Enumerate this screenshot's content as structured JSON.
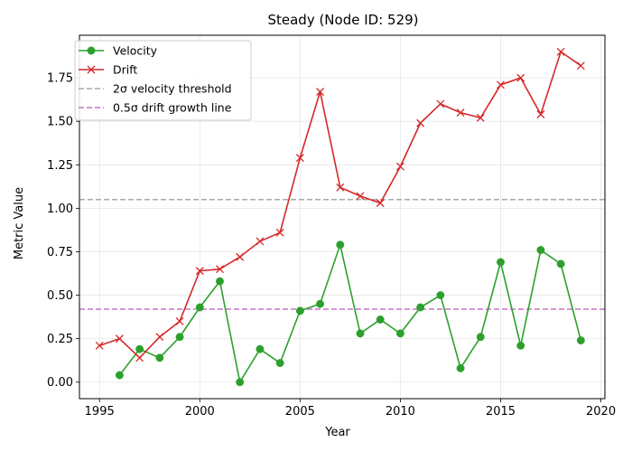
{
  "chart_data": {
    "type": "line",
    "title": "Steady (Node ID: 529)",
    "xlabel": "Year",
    "ylabel": "Metric Value",
    "xlim": [
      1994,
      2020.2
    ],
    "ylim": [
      -0.095,
      1.995
    ],
    "x_ticks": [
      1995,
      2000,
      2005,
      2010,
      2015,
      2020
    ],
    "y_ticks": [
      0.0,
      0.25,
      0.5,
      0.75,
      1.0,
      1.25,
      1.5,
      1.75
    ],
    "x_tick_labels": [
      "1995",
      "2000",
      "2005",
      "2010",
      "2015",
      "2020"
    ],
    "y_tick_labels": [
      "0.00",
      "0.25",
      "0.50",
      "0.75",
      "1.00",
      "1.25",
      "1.50",
      "1.75"
    ],
    "grid": true,
    "legend_position": "top-left",
    "series": [
      {
        "name": "Velocity",
        "color": "#2ca02c",
        "marker": "circle",
        "x": [
          1996,
          1997,
          1998,
          1999,
          2000,
          2001,
          2002,
          2003,
          2004,
          2005,
          2006,
          2007,
          2008,
          2009,
          2010,
          2011,
          2012,
          2013,
          2014,
          2015,
          2016,
          2017,
          2018,
          2019
        ],
        "values": [
          0.04,
          0.19,
          0.14,
          0.26,
          0.43,
          0.58,
          0.0,
          0.19,
          0.11,
          0.41,
          0.45,
          0.79,
          0.28,
          0.36,
          0.28,
          0.43,
          0.5,
          0.08,
          0.26,
          0.69,
          0.21,
          0.76,
          0.68,
          0.24
        ]
      },
      {
        "name": "Drift",
        "color": "#d62728",
        "marker": "x",
        "x": [
          1995,
          1996,
          1997,
          1998,
          1999,
          2000,
          2001,
          2002,
          2003,
          2004,
          2005,
          2006,
          2007,
          2008,
          2009,
          2010,
          2011,
          2012,
          2013,
          2014,
          2015,
          2016,
          2017,
          2018,
          2019
        ],
        "values": [
          0.21,
          0.25,
          0.14,
          0.26,
          0.35,
          0.64,
          0.65,
          0.72,
          0.81,
          0.86,
          1.29,
          1.67,
          1.12,
          1.07,
          1.03,
          1.24,
          1.49,
          1.6,
          1.55,
          1.52,
          1.71,
          1.75,
          1.54,
          1.9,
          1.82
        ]
      }
    ],
    "reference_lines": [
      {
        "name": "2σ velocity threshold",
        "value": 1.05,
        "color": "#aaaaaa",
        "style": "dashed"
      },
      {
        "name": "0.5σ drift growth line",
        "value": 0.42,
        "color": "#c875c4",
        "style": "dashed"
      }
    ]
  }
}
